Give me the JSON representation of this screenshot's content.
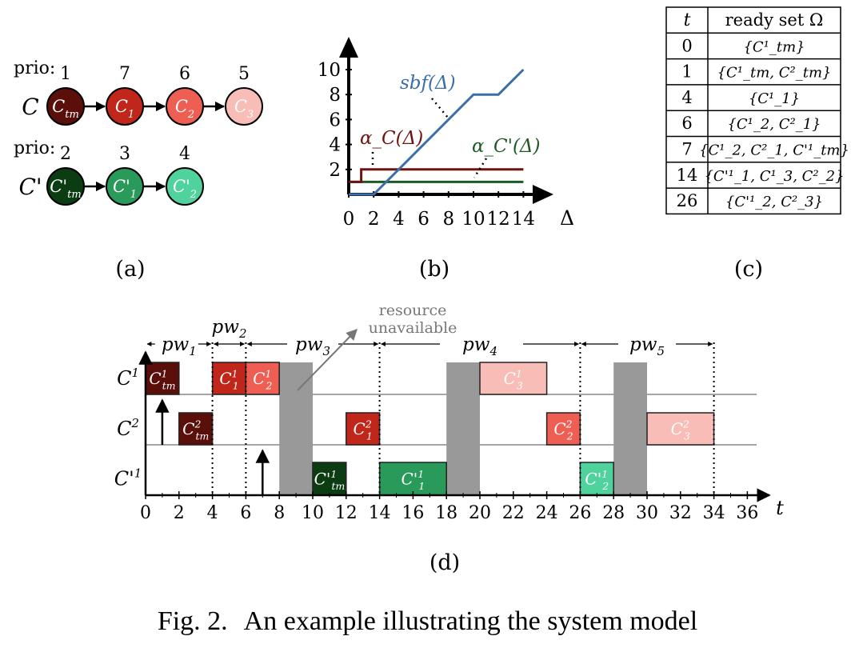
{
  "caption": {
    "label": "Fig. 2.",
    "text": "An example illustrating the system model"
  },
  "panel_a": {
    "label": "(a)",
    "chains": [
      {
        "name": "C",
        "prio_prefix": "prio:",
        "tasks": [
          {
            "label": "C_tm",
            "prio": "1",
            "color": "#5a0f0a"
          },
          {
            "label": "C_1",
            "prio": "7",
            "color": "#c0261a"
          },
          {
            "label": "C_2",
            "prio": "6",
            "color": "#ee5e52"
          },
          {
            "label": "C_3",
            "prio": "5",
            "color": "#f7bdb6"
          }
        ]
      },
      {
        "name": "C'",
        "prio_prefix": "prio:",
        "tasks": [
          {
            "label": "C'_tm",
            "prio": "2",
            "color": "#0c3d12"
          },
          {
            "label": "C'_1",
            "prio": "3",
            "color": "#2a9a5a"
          },
          {
            "label": "C'_2",
            "prio": "4",
            "color": "#4fd29b"
          }
        ]
      }
    ]
  },
  "panel_b": {
    "label": "(b)",
    "chart_data": {
      "type": "line",
      "xlabel": "Δ",
      "x_ticks": [
        "0",
        "2",
        "4",
        "6",
        "8",
        "10",
        "12",
        "14"
      ],
      "y_ticks": [
        "2",
        "4",
        "6",
        "8",
        "10"
      ],
      "xlim": [
        0,
        15
      ],
      "ylim": [
        0,
        11.5
      ],
      "series": [
        {
          "name": "sbf(Δ)",
          "color": "#3a6fa8",
          "points": [
            [
              0,
              0
            ],
            [
              2,
              0
            ],
            [
              10,
              8
            ],
            [
              12,
              8
            ],
            [
              14,
              10
            ]
          ]
        },
        {
          "name": "α_C(Δ)",
          "color": "#6e1410",
          "points": [
            [
              0,
              1
            ],
            [
              1,
              1
            ],
            [
              1,
              2
            ],
            [
              14,
              2
            ]
          ]
        },
        {
          "name": "α_C'(Δ)",
          "color": "#1f5a24",
          "points": [
            [
              0,
              1
            ],
            [
              14,
              1
            ]
          ]
        }
      ]
    }
  },
  "panel_c": {
    "label": "(c)",
    "headers": [
      "t",
      "ready set Ω"
    ],
    "rows": [
      [
        "0",
        "{C¹_tm}"
      ],
      [
        "1",
        "{C¹_tm, C²_tm}"
      ],
      [
        "4",
        "{C¹_1}"
      ],
      [
        "6",
        "{C¹_2, C²_1}"
      ],
      [
        "7",
        "{C¹_2, C²_1, C'¹_tm}"
      ],
      [
        "14",
        "{C'¹_1, C¹_3, C²_2}"
      ],
      [
        "26",
        "{C'¹_2, C²_3}"
      ]
    ]
  },
  "panel_d": {
    "label": "(d)",
    "time_axis_label": "t",
    "ticks": [
      "0",
      "2",
      "4",
      "6",
      "8",
      "10",
      "12",
      "14",
      "16",
      "18",
      "20",
      "22",
      "24",
      "26",
      "28",
      "30",
      "32",
      "34",
      "36"
    ],
    "rows": [
      "C¹",
      "C²",
      "C'¹"
    ],
    "annotation": [
      "resource",
      "unavailable"
    ],
    "processing_windows": [
      {
        "label": "pw1",
        "start": 0,
        "end": 4
      },
      {
        "label": "pw2",
        "start": 4,
        "end": 6
      },
      {
        "label": "pw3",
        "start": 6,
        "end": 14
      },
      {
        "label": "pw4",
        "start": 14,
        "end": 26
      },
      {
        "label": "pw5",
        "start": 26,
        "end": 34
      }
    ],
    "unavailable": [
      [
        8,
        10
      ],
      [
        18,
        20
      ],
      [
        28,
        30
      ]
    ],
    "releases": [
      {
        "row": 0,
        "t": 0
      },
      {
        "row": 1,
        "t": 1
      },
      {
        "row": 2,
        "t": 7
      }
    ],
    "jobs": [
      {
        "row": 0,
        "start": 0,
        "end": 2,
        "task": "tm",
        "color": "#5a0f0a"
      },
      {
        "row": 0,
        "start": 4,
        "end": 6,
        "task": "1",
        "color": "#c0261a"
      },
      {
        "row": 0,
        "start": 6,
        "end": 8,
        "task": "2",
        "color": "#ee5e52"
      },
      {
        "row": 0,
        "start": 20,
        "end": 24,
        "task": "3",
        "color": "#f7bdb6"
      },
      {
        "row": 1,
        "start": 2,
        "end": 4,
        "task": "tm",
        "color": "#5a0f0a"
      },
      {
        "row": 1,
        "start": 12,
        "end": 14,
        "task": "1",
        "color": "#c0261a"
      },
      {
        "row": 1,
        "start": 24,
        "end": 26,
        "task": "2",
        "color": "#ee5e52"
      },
      {
        "row": 1,
        "start": 30,
        "end": 34,
        "task": "3",
        "color": "#f7bdb6"
      },
      {
        "row": 2,
        "start": 10,
        "end": 12,
        "task": "tm",
        "color": "#0c3d12"
      },
      {
        "row": 2,
        "start": 14,
        "end": 18,
        "task": "1",
        "color": "#2a9a5a"
      },
      {
        "row": 2,
        "start": 26,
        "end": 28,
        "task": "2",
        "color": "#4fd29b"
      }
    ]
  }
}
